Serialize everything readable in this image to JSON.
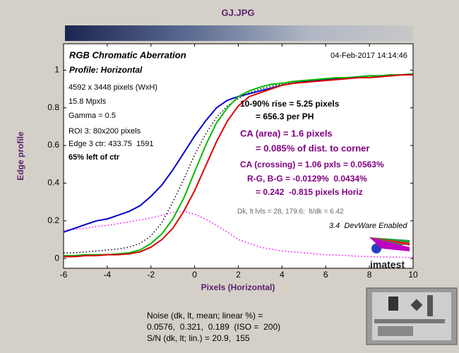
{
  "chart_data": {
    "type": "line",
    "title": "GJ.JPG",
    "x_label": "Pixels (Horizontal)",
    "y_label": "Edge profile",
    "xlim": [
      -6,
      10
    ],
    "ylim": [
      -0.052,
      1.14
    ],
    "xticks": [
      -6,
      -4,
      -2,
      0,
      2,
      4,
      6,
      8,
      10
    ],
    "yticks": [
      0,
      0.2,
      0.4,
      0.6,
      0.8,
      1
    ],
    "grid": false,
    "x": [
      -6,
      -5.5,
      -5,
      -4.5,
      -4,
      -3.5,
      -3,
      -2.5,
      -2,
      -1.5,
      -1,
      -0.5,
      0,
      0.5,
      1,
      1.5,
      2,
      2.5,
      3,
      3.5,
      4,
      4.5,
      5,
      5.5,
      6,
      6.5,
      7,
      7.5,
      8,
      8.5,
      9,
      9.5,
      10
    ],
    "series": [
      {
        "color": "#ff00ff",
        "style": "dotted",
        "values": [
          0.15,
          0.155,
          0.16,
          0.17,
          0.175,
          0.185,
          0.195,
          0.205,
          0.215,
          0.23,
          0.245,
          0.25,
          0.235,
          0.21,
          0.175,
          0.14,
          0.1,
          0.08,
          0.06,
          0.05,
          0.04,
          0.035,
          0.03,
          0.025,
          0.02,
          0.018,
          0.015,
          0.012,
          0.01,
          0.008,
          0.007,
          0.006,
          0.005
        ]
      },
      {
        "color": "#000000",
        "style": "dotted",
        "values": [
          0.03,
          0.03,
          0.035,
          0.04,
          0.045,
          0.05,
          0.06,
          0.08,
          0.12,
          0.19,
          0.3,
          0.42,
          0.55,
          0.66,
          0.75,
          0.81,
          0.85,
          0.88,
          0.9,
          0.915,
          0.925,
          0.935,
          0.94,
          0.945,
          0.95,
          0.955,
          0.96,
          0.965,
          0.97,
          0.97,
          0.975,
          0.975,
          0.98
        ]
      },
      {
        "color": "#0000cc",
        "style": "solid",
        "values": [
          0.14,
          0.16,
          0.18,
          0.2,
          0.21,
          0.23,
          0.25,
          0.28,
          0.33,
          0.39,
          0.47,
          0.56,
          0.65,
          0.73,
          0.8,
          0.84,
          0.86,
          0.875,
          0.89,
          0.905,
          0.92,
          0.93,
          0.94,
          0.945,
          0.95,
          0.955,
          0.96,
          0.965,
          0.97,
          0.97,
          0.975,
          0.975,
          0.98
        ]
      },
      {
        "color": "#00bb00",
        "style": "solid",
        "values": [
          0.015,
          0.015,
          0.02,
          0.02,
          0.02,
          0.025,
          0.03,
          0.045,
          0.08,
          0.13,
          0.21,
          0.32,
          0.46,
          0.6,
          0.72,
          0.8,
          0.86,
          0.89,
          0.91,
          0.925,
          0.93,
          0.94,
          0.945,
          0.95,
          0.955,
          0.96,
          0.96,
          0.965,
          0.97,
          0.97,
          0.975,
          0.975,
          0.98
        ]
      },
      {
        "color": "#dd0000",
        "style": "solid",
        "values": [
          0.01,
          0.01,
          0.015,
          0.015,
          0.02,
          0.02,
          0.025,
          0.035,
          0.06,
          0.1,
          0.16,
          0.25,
          0.36,
          0.49,
          0.62,
          0.73,
          0.81,
          0.86,
          0.88,
          0.9,
          0.92,
          0.93,
          0.935,
          0.94,
          0.945,
          0.95,
          0.955,
          0.96,
          0.96,
          0.965,
          0.97,
          0.975,
          0.975
        ]
      }
    ],
    "annotations": [
      "RGB Chromatic Aberration",
      "Profile: Horizontal",
      "4592 x 3448 pixels (WxH)",
      "15.8 Mpxls",
      "Gamma = 0.5",
      "ROI 3: 80x200 pixels",
      "Edge 3 ctr: 433.75  1591",
      "65% left of ctr",
      "04-Feb-2017 14:14:46",
      "10-90% rise = 5.25 pixels",
      "= 656.3 per PH",
      "CA (area) = 1.6 pixels",
      "= 0.085% of dist. to corner",
      "CA (crossing) = 1.06 pxls = 0.0563%",
      "R-G, B-G = -0.0129%  0.0434%",
      "= 0.242  -0.815 pixels Horiz",
      "Dk, lt lvls = 28, 179.6;  lt/dk = 6.42",
      "3.4  DevWare Enabled",
      "imatest",
      "Noise (dk, lt, mean; linear %) =",
      "0.0576,  0.321,  0.189  (ISO =  200)",
      "S/N (dk, lt; lin.) = 20.9,  155"
    ]
  }
}
